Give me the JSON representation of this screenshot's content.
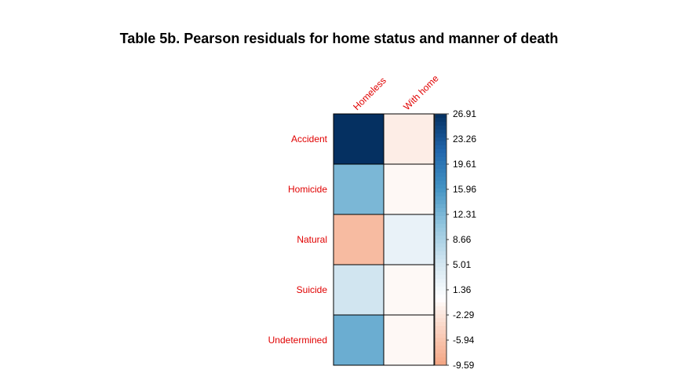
{
  "chart_data": {
    "type": "heatmap",
    "title": "Table 5b. Pearson residuals for home status and manner of death",
    "rows": [
      "Accident",
      "Homicide",
      "Natural",
      "Suicide",
      "Undetermined"
    ],
    "columns": [
      "Homeless",
      "With home"
    ],
    "values": [
      [
        26.91,
        -1.6
      ],
      [
        12.3,
        -0.6
      ],
      [
        -7.0,
        2.6
      ],
      [
        5.4,
        -0.5
      ],
      [
        13.4,
        -0.6
      ]
    ],
    "colorbar": {
      "min": -9.59,
      "max": 26.91,
      "ticks": [
        "26.91",
        "23.26",
        "19.61",
        "15.96",
        "12.31",
        "8.66",
        "5.01",
        "1.36",
        "-2.29",
        "-5.94",
        "-9.59"
      ]
    },
    "colors": {
      "row_label": "#e00000",
      "col_label": "#e00000",
      "negative_end": "#f4a582",
      "neutral": "#ffffff",
      "positive_end": "#053061"
    }
  }
}
